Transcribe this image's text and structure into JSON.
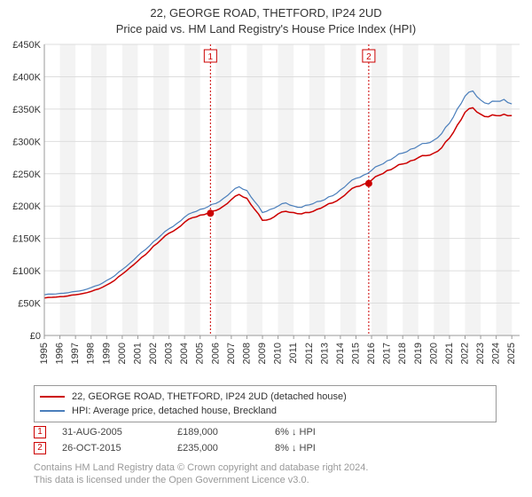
{
  "title": {
    "line1": "22, GEORGE ROAD, THETFORD, IP24 2UD",
    "line2": "Price paid vs. HM Land Registry's House Price Index (HPI)",
    "fontsize": 13,
    "color": "#333333"
  },
  "chart": {
    "type": "line",
    "background_color": "#ffffff",
    "plot_background_color": "#ffffff",
    "shaded_band_color": "#f3f3f3",
    "grid_color": "#dddddd",
    "axis_color": "#999999",
    "xlim": [
      1995,
      2025.5
    ],
    "ylim": [
      0,
      450000
    ],
    "ytick_step": 50000,
    "yticks": [
      0,
      50000,
      100000,
      150000,
      200000,
      250000,
      300000,
      350000,
      400000,
      450000
    ],
    "ytick_labels": [
      "£0",
      "£50K",
      "£100K",
      "£150K",
      "£200K",
      "£250K",
      "£300K",
      "£350K",
      "£400K",
      "£450K"
    ],
    "xticks": [
      1995,
      1996,
      1997,
      1998,
      1999,
      2000,
      2001,
      2002,
      2003,
      2004,
      2005,
      2006,
      2007,
      2008,
      2009,
      2010,
      2011,
      2012,
      2013,
      2014,
      2015,
      2016,
      2017,
      2018,
      2019,
      2020,
      2021,
      2022,
      2023,
      2024,
      2025
    ],
    "xtick_labels": [
      "1995",
      "1996",
      "1997",
      "1998",
      "1999",
      "2000",
      "2001",
      "2002",
      "2003",
      "2004",
      "2005",
      "2006",
      "2007",
      "2008",
      "2009",
      "2010",
      "2011",
      "2012",
      "2013",
      "2014",
      "2015",
      "2016",
      "2017",
      "2018",
      "2019",
      "2020",
      "2021",
      "2022",
      "2023",
      "2024",
      "2025"
    ],
    "label_fontsize": 11,
    "series": [
      {
        "name": "property",
        "label": "22, GEORGE ROAD, THETFORD, IP24 2UD (detached house)",
        "color": "#cc0000",
        "width": 1.5,
        "x": [
          1995,
          1995.5,
          1996,
          1996.5,
          1997,
          1997.5,
          1998,
          1998.5,
          1999,
          1999.5,
          2000,
          2000.5,
          2001,
          2001.5,
          2002,
          2002.5,
          2003,
          2003.5,
          2004,
          2004.5,
          2005,
          2005.5,
          2006,
          2006.5,
          2007,
          2007.5,
          2008,
          2008.5,
          2009,
          2009.5,
          2010,
          2010.5,
          2011,
          2011.5,
          2012,
          2012.5,
          2013,
          2013.5,
          2014,
          2014.5,
          2015,
          2015.5,
          2016,
          2016.5,
          2017,
          2017.5,
          2018,
          2018.5,
          2019,
          2019.5,
          2020,
          2020.5,
          2021,
          2021.5,
          2022,
          2022.5,
          2023,
          2023.5,
          2024,
          2024.5,
          2025
        ],
        "y": [
          58000,
          59000,
          60000,
          61000,
          63000,
          65000,
          68000,
          72000,
          78000,
          85000,
          95000,
          105000,
          115000,
          125000,
          138000,
          148000,
          158000,
          165000,
          175000,
          182000,
          186000,
          189000,
          193000,
          200000,
          210000,
          218000,
          212000,
          195000,
          178000,
          180000,
          188000,
          192000,
          190000,
          188000,
          190000,
          195000,
          200000,
          205000,
          212000,
          222000,
          230000,
          234000,
          240000,
          248000,
          255000,
          260000,
          265000,
          270000,
          275000,
          278000,
          282000,
          290000,
          305000,
          325000,
          345000,
          352000,
          342000,
          338000,
          340000,
          342000,
          340000
        ]
      },
      {
        "name": "hpi",
        "label": "HPI: Average price, detached house, Breckland",
        "color": "#4a7ebb",
        "width": 1.2,
        "x": [
          1995,
          1995.5,
          1996,
          1996.5,
          1997,
          1997.5,
          1998,
          1998.5,
          1999,
          1999.5,
          2000,
          2000.5,
          2001,
          2001.5,
          2002,
          2002.5,
          2003,
          2003.5,
          2004,
          2004.5,
          2005,
          2005.5,
          2006,
          2006.5,
          2007,
          2007.5,
          2008,
          2008.5,
          2009,
          2009.5,
          2010,
          2010.5,
          2011,
          2011.5,
          2012,
          2012.5,
          2013,
          2013.5,
          2014,
          2014.5,
          2015,
          2015.5,
          2016,
          2016.5,
          2017,
          2017.5,
          2018,
          2018.5,
          2019,
          2019.5,
          2020,
          2020.5,
          2021,
          2021.5,
          2022,
          2022.5,
          2023,
          2023.5,
          2024,
          2024.5,
          2025
        ],
        "y": [
          63000,
          64000,
          65000,
          66000,
          68000,
          70000,
          74000,
          78000,
          85000,
          92000,
          102000,
          112000,
          123000,
          133000,
          145000,
          155000,
          165000,
          173000,
          183000,
          190000,
          195000,
          199000,
          204000,
          212000,
          222000,
          230000,
          224000,
          207000,
          190000,
          195000,
          200000,
          205000,
          200000,
          198000,
          202000,
          207000,
          210000,
          216000,
          225000,
          235000,
          243000,
          248000,
          255000,
          263000,
          270000,
          276000,
          282000,
          288000,
          293000,
          297000,
          302000,
          312000,
          328000,
          350000,
          370000,
          378000,
          364000,
          358000,
          362000,
          365000,
          358000
        ]
      }
    ],
    "sale_markers": [
      {
        "n": "1",
        "x": 2005.66,
        "y": 189000,
        "line_x": 2005.66
      },
      {
        "n": "2",
        "x": 2015.82,
        "y": 235000,
        "line_x": 2015.82
      }
    ],
    "marker_line_color": "#cc0000",
    "marker_dot_color": "#cc0000",
    "marker_box_border": "#cc0000",
    "marker_box_bg": "#ffffff"
  },
  "legend": {
    "border_color": "#999999",
    "fontsize": 11
  },
  "sales": [
    {
      "n": "1",
      "date": "31-AUG-2005",
      "price": "£189,000",
      "diff": "6% ↓ HPI"
    },
    {
      "n": "2",
      "date": "26-OCT-2015",
      "price": "£235,000",
      "diff": "8% ↓ HPI"
    }
  ],
  "footer": {
    "line1": "Contains HM Land Registry data © Crown copyright and database right 2024.",
    "line2": "This data is licensed under the Open Government Licence v3.0.",
    "color": "#999999",
    "fontsize": 11
  }
}
